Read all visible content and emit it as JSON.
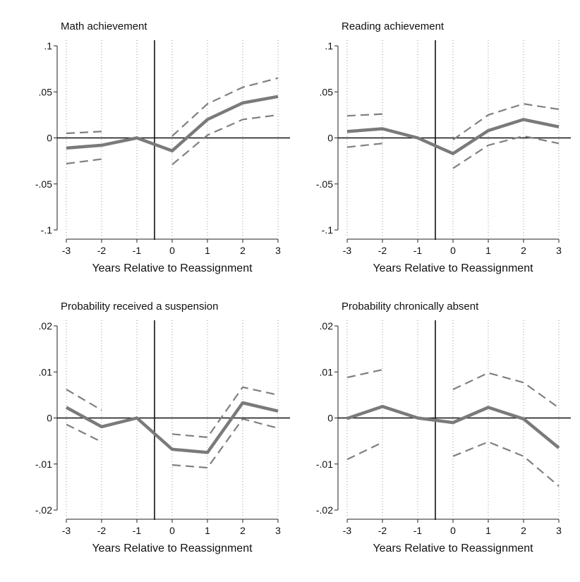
{
  "figure": {
    "x_axis_title": "Years Relative to Reassignment"
  },
  "chart_data": [
    {
      "type": "line",
      "title": "Math achievement",
      "xlabel": "Years Relative to Reassignment",
      "ylabel": "",
      "x": [
        -3,
        -2,
        -1,
        0,
        1,
        2,
        3
      ],
      "x_tick_labels": [
        "-3",
        "-2",
        "-1",
        "0",
        "1",
        "2",
        "3"
      ],
      "ylim": [
        -0.1,
        0.1
      ],
      "y_ticks": [
        0.1,
        0.05,
        0,
        -0.05,
        -0.1
      ],
      "y_tick_labels": [
        ".1",
        ".05",
        "0",
        "-.05",
        "-.1"
      ],
      "reassignment_line_x": -0.5,
      "series": [
        {
          "name": "estimate",
          "style": "solid",
          "values": [
            -0.011,
            -0.008,
            0.0,
            -0.014,
            0.02,
            0.038,
            0.045
          ]
        },
        {
          "name": "upper 95% CI",
          "style": "dashed",
          "values": [
            0.005,
            0.007,
            null,
            0.002,
            0.037,
            0.055,
            0.065
          ]
        },
        {
          "name": "lower 95% CI",
          "style": "dashed",
          "values": [
            -0.028,
            -0.023,
            null,
            -0.029,
            0.003,
            0.02,
            0.025
          ]
        }
      ]
    },
    {
      "type": "line",
      "title": "Reading achievement",
      "xlabel": "Years Relative to Reassignment",
      "ylabel": "",
      "x": [
        -3,
        -2,
        -1,
        0,
        1,
        2,
        3
      ],
      "x_tick_labels": [
        "-3",
        "-2",
        "-1",
        "0",
        "1",
        "2",
        "3"
      ],
      "ylim": [
        -0.1,
        0.1
      ],
      "y_ticks": [
        0.1,
        0.05,
        0,
        -0.05,
        -0.1
      ],
      "y_tick_labels": [
        ".1",
        ".05",
        "0",
        "-.05",
        "-.1"
      ],
      "reassignment_line_x": -0.5,
      "series": [
        {
          "name": "estimate",
          "style": "solid",
          "values": [
            0.007,
            0.01,
            0.0,
            -0.017,
            0.008,
            0.02,
            0.012
          ]
        },
        {
          "name": "upper 95% CI",
          "style": "dashed",
          "values": [
            0.024,
            0.026,
            null,
            -0.002,
            0.025,
            0.037,
            0.031
          ]
        },
        {
          "name": "lower 95% CI",
          "style": "dashed",
          "values": [
            -0.01,
            -0.006,
            null,
            -0.033,
            -0.008,
            0.002,
            -0.006
          ]
        }
      ]
    },
    {
      "type": "line",
      "title": "Probability received a suspension",
      "xlabel": "Years Relative to Reassignment",
      "ylabel": "",
      "x": [
        -3,
        -2,
        -1,
        0,
        1,
        2,
        3
      ],
      "x_tick_labels": [
        "-3",
        "-2",
        "-1",
        "0",
        "1",
        "2",
        "3"
      ],
      "ylim": [
        -0.02,
        0.02
      ],
      "y_ticks": [
        0.02,
        0.01,
        0,
        -0.01,
        -0.02
      ],
      "y_tick_labels": [
        ".02",
        ".01",
        "0",
        "-.01",
        "-.02"
      ],
      "reassignment_line_x": -0.5,
      "series": [
        {
          "name": "estimate",
          "style": "solid",
          "values": [
            0.0023,
            -0.0019,
            0.0,
            -0.0068,
            -0.0075,
            0.0033,
            0.0015
          ]
        },
        {
          "name": "upper 95% CI",
          "style": "dashed",
          "values": [
            0.0062,
            0.0017,
            null,
            -0.0035,
            -0.0042,
            0.0067,
            0.005
          ]
        },
        {
          "name": "lower 95% CI",
          "style": "dashed",
          "values": [
            -0.0014,
            -0.0052,
            null,
            -0.0102,
            -0.0108,
            -0.0002,
            -0.0022
          ]
        }
      ]
    },
    {
      "type": "line",
      "title": "Probability chronically absent",
      "xlabel": "Years Relative to Reassignment",
      "ylabel": "",
      "x": [
        -3,
        -2,
        -1,
        0,
        1,
        2,
        3
      ],
      "x_tick_labels": [
        "-3",
        "-2",
        "-1",
        "0",
        "1",
        "2",
        "3"
      ],
      "ylim": [
        -0.02,
        0.02
      ],
      "y_ticks": [
        0.02,
        0.01,
        0,
        -0.01,
        -0.02
      ],
      "y_tick_labels": [
        ".02",
        ".01",
        "0",
        "-.01",
        "-.02"
      ],
      "reassignment_line_x": -0.5,
      "series": [
        {
          "name": "estimate",
          "style": "solid",
          "values": [
            -0.0001,
            0.0025,
            0.0,
            -0.001,
            0.0023,
            -0.0002,
            -0.0065
          ]
        },
        {
          "name": "upper 95% CI",
          "style": "dashed",
          "values": [
            0.0088,
            0.0105,
            null,
            0.0062,
            0.0098,
            0.0077,
            0.0022
          ]
        },
        {
          "name": "lower 95% CI",
          "style": "dashed",
          "values": [
            -0.009,
            -0.0053,
            null,
            -0.0083,
            -0.0052,
            -0.0083,
            -0.0148
          ]
        }
      ]
    }
  ]
}
